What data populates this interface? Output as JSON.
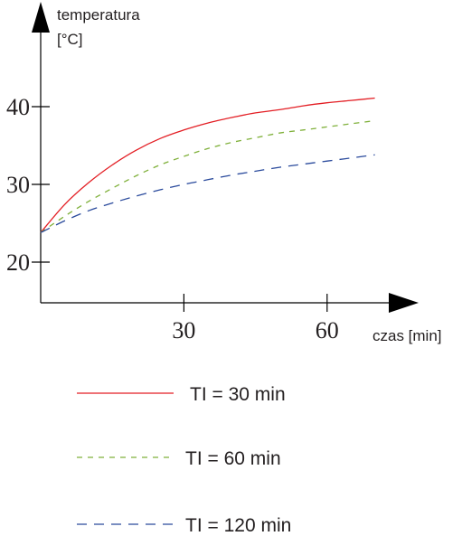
{
  "chart_data": {
    "type": "line",
    "ylabel_line1": "temperatura",
    "ylabel_line2": "[°C]",
    "xlabel": "czas [min]",
    "x_ticks": [
      30,
      60
    ],
    "x_tick_labels": [
      "30",
      "60"
    ],
    "y_ticks": [
      20,
      30,
      40
    ],
    "y_tick_labels": [
      "20",
      "30",
      "40"
    ],
    "xlim": [
      0,
      75
    ],
    "ylim": [
      16,
      51
    ],
    "series": [
      {
        "name": "TI = 30 min",
        "color": "#e31e24",
        "dash": "solid",
        "x": [
          0,
          5,
          10,
          15,
          20,
          25,
          30,
          35,
          40,
          45,
          50,
          55,
          60,
          65,
          70
        ],
        "y": [
          23.8,
          27.4,
          30.2,
          32.5,
          34.4,
          35.9,
          37.0,
          37.9,
          38.6,
          39.2,
          39.6,
          40.1,
          40.5,
          40.8,
          41.1
        ]
      },
      {
        "name": "TI = 60 min",
        "color": "#7fb03a",
        "dash": "short",
        "x": [
          0,
          5,
          10,
          15,
          20,
          25,
          30,
          35,
          40,
          45,
          50,
          55,
          60,
          65,
          70
        ],
        "y": [
          23.8,
          25.9,
          27.8,
          29.5,
          31.1,
          32.5,
          33.6,
          34.6,
          35.4,
          36.0,
          36.6,
          37.0,
          37.4,
          37.8,
          38.2
        ]
      },
      {
        "name": "TI = 120 min",
        "color": "#2a4a9c",
        "dash": "long",
        "x": [
          0,
          5,
          10,
          15,
          20,
          25,
          30,
          35,
          40,
          45,
          50,
          55,
          60,
          65,
          70
        ],
        "y": [
          23.8,
          25.3,
          26.6,
          27.6,
          28.5,
          29.3,
          30.0,
          30.6,
          31.2,
          31.7,
          32.2,
          32.6,
          33.0,
          33.4,
          33.8
        ]
      }
    ],
    "legend": [
      {
        "label": "TI = 30 min",
        "color": "#e31e24",
        "dash": "solid"
      },
      {
        "label": "TI = 60 min",
        "color": "#7fb03a",
        "dash": "short"
      },
      {
        "label": "TI = 120 min",
        "color": "#2a4a9c",
        "dash": "long"
      }
    ],
    "legend_placement": "below",
    "grid": false
  }
}
